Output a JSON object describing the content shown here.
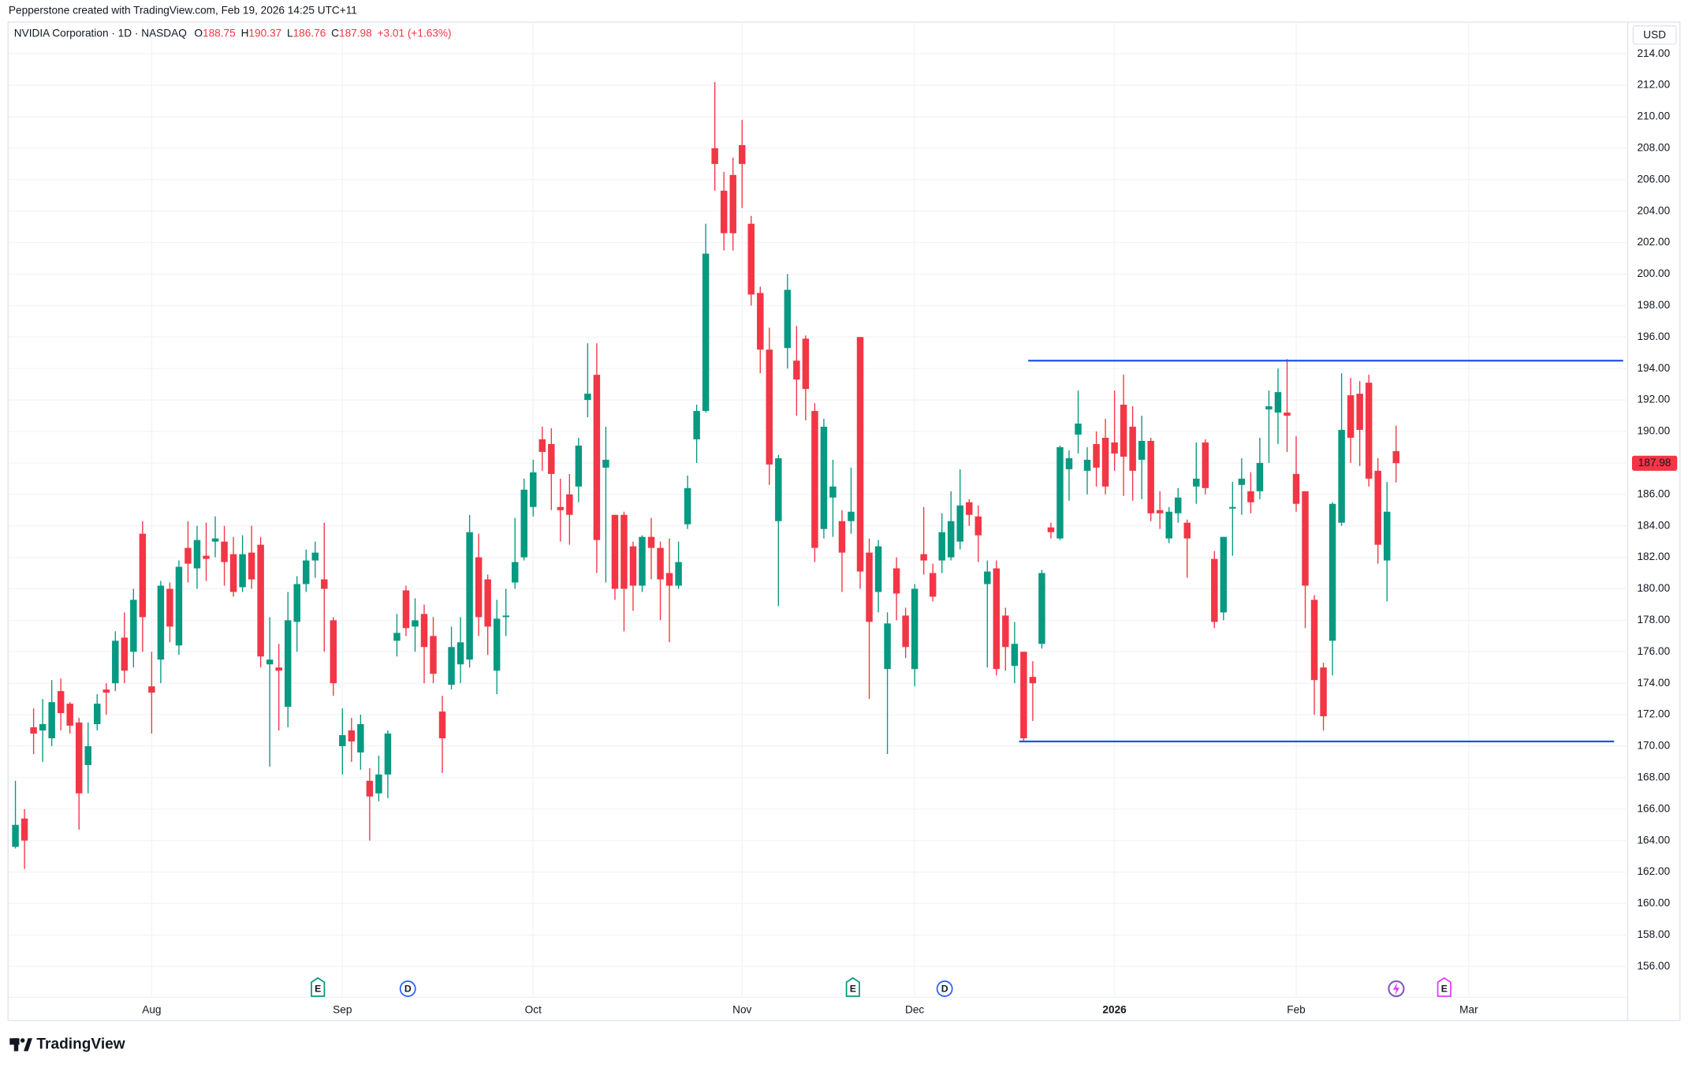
{
  "credit": "Pepperstone created with TradingView.com, Feb 19, 2026 14:25 UTC+11",
  "header": {
    "title": "NVIDIA Corporation · 1D · NASDAQ",
    "fields": [
      {
        "label": "O",
        "value": 188.75
      },
      {
        "label": "H",
        "value": 190.37
      },
      {
        "label": "L",
        "value": 186.76
      },
      {
        "label": "C",
        "value": 187.98
      }
    ],
    "change": "+3.01 (+1.63%)"
  },
  "currency": "USD",
  "footer": "TradingView",
  "chart_data": {
    "type": "candlestick",
    "up_color": "#089981",
    "down_color": "#f23645",
    "grid": true,
    "open": [
      163.6,
      165.4,
      171.2,
      171,
      170.5,
      173.5,
      172.7,
      171.5,
      168.8,
      171.4,
      173.6,
      174,
      176.9,
      176,
      183.5,
      173.8,
      175.5,
      180,
      176.4,
      182.6,
      181.3,
      182.1,
      183,
      183,
      182.2,
      180.1,
      182.3,
      182.8,
      175.2,
      175,
      172.5,
      177.9,
      180.3,
      181.8,
      180.6,
      178,
      170,
      171,
      169.6,
      167.8,
      167,
      168.2,
      176.7,
      179.9,
      177.6,
      178.4,
      177,
      172.2,
      173.9,
      175.2,
      175.5,
      182,
      180.6,
      174.8,
      178.2,
      180.4,
      182,
      185.2,
      189.5,
      189.2,
      185.2,
      186,
      186.5,
      192,
      193.6,
      187.7,
      184.7,
      184.7,
      182.7,
      180.2,
      183.3,
      182.6,
      181,
      180.2,
      184.1,
      189.5,
      191.3,
      208,
      205.3,
      206.3,
      208.2,
      203.2,
      198.8,
      195.2,
      184.3,
      195.3,
      194.5,
      195.9,
      191.3,
      183.8,
      185.8,
      184.3,
      184.3,
      196,
      182.3,
      179.8,
      174.9,
      181.3,
      178.3,
      174.9,
      182.2,
      181,
      181.8,
      182,
      183,
      185.5,
      184.6,
      180.3,
      181.3,
      178.3,
      175.1,
      176,
      174.4,
      176.5,
      183.9,
      183.2,
      187.6,
      189.8,
      187.5,
      189.2,
      189.6,
      189.3,
      191.7,
      190.3,
      188.2,
      189.4,
      185,
      183.2,
      184.8,
      184.2,
      186.5,
      189.3,
      181.9,
      178.5,
      185.1,
      186.6,
      186.2,
      186.2,
      191.4,
      191.2,
      191.2,
      187.3,
      186.2,
      179.3,
      175,
      176.7,
      184.2,
      192.3,
      192.4,
      193.1,
      187.5,
      181.8,
      188.75
    ],
    "high": [
      167.8,
      166,
      172.4,
      173,
      174.2,
      174.3,
      172.8,
      171.8,
      171.5,
      173.3,
      174,
      177.3,
      178.5,
      180,
      184.3,
      176,
      180.5,
      180.4,
      181.8,
      184.3,
      184,
      184.2,
      184.6,
      184,
      183.3,
      183.4,
      184,
      183.3,
      178.2,
      176.5,
      179.8,
      180.8,
      182.5,
      183,
      184.2,
      178.2,
      172.4,
      171.8,
      172,
      168.6,
      169.4,
      171,
      178.4,
      180.2,
      179.4,
      179,
      178.2,
      173.2,
      177.6,
      178.2,
      184.7,
      183.5,
      180.9,
      179.3,
      180,
      184.5,
      187,
      188.2,
      190.3,
      190.2,
      187,
      187.3,
      189.6,
      195.6,
      195.6,
      190.3,
      184.7,
      184.9,
      183,
      183.4,
      184.5,
      183,
      183.2,
      183,
      187.2,
      191.7,
      203.2,
      212.2,
      206.5,
      207.4,
      209.8,
      203.7,
      199.2,
      196.6,
      188.5,
      200,
      196.7,
      196.1,
      191.8,
      190.8,
      188.2,
      185,
      187.7,
      196,
      183.2,
      183.1,
      178.5,
      182,
      178.8,
      180.3,
      185.2,
      181.6,
      184.8,
      186.2,
      187.6,
      185.7,
      185.3,
      181.8,
      181.8,
      178.8,
      177.9,
      176,
      175.4,
      181.2,
      184.2,
      189.1,
      188.8,
      192.6,
      189,
      190,
      190.8,
      192.6,
      193.6,
      191.6,
      191,
      189.6,
      186.2,
      185.2,
      186.4,
      184.4,
      189.3,
      189.5,
      182.4,
      183.3,
      186.8,
      188.3,
      187.4,
      189.6,
      192.6,
      194,
      194.6,
      189.7,
      186.2,
      179.6,
      175.3,
      185.5,
      193.7,
      193.4,
      193.2,
      193.6,
      188.3,
      186.8,
      190.37
    ],
    "low": [
      163.5,
      162.2,
      169.5,
      169,
      170,
      171,
      170.8,
      164.7,
      167,
      171,
      172,
      173.5,
      174,
      175,
      176,
      170.8,
      174,
      176.6,
      175.8,
      180.4,
      180,
      180.5,
      182,
      180.2,
      179.5,
      179.8,
      180,
      175,
      168.7,
      171,
      171.2,
      176,
      179.8,
      180.7,
      176,
      173.2,
      168.2,
      169,
      168.5,
      164,
      166.5,
      166.7,
      175.7,
      177,
      176,
      174,
      174,
      168.3,
      173.6,
      174,
      175,
      177,
      175.8,
      173.3,
      177,
      180,
      181.8,
      184.6,
      187.5,
      185,
      183,
      182.8,
      185.5,
      190.9,
      181,
      180.4,
      179.3,
      177.3,
      178.6,
      179.8,
      180.6,
      178,
      176.6,
      180,
      183.8,
      188,
      191.2,
      205.3,
      201.5,
      201.5,
      204.2,
      198,
      193.7,
      186.6,
      178.9,
      194,
      191,
      190.7,
      181.7,
      183.2,
      183.3,
      179.8,
      183.5,
      180,
      173,
      178.5,
      169.5,
      178,
      175.6,
      173.8,
      180.9,
      179.2,
      181,
      181.8,
      182.5,
      184,
      181.7,
      175,
      174.5,
      174.8,
      174,
      170.3,
      171.6,
      176.2,
      183.2,
      183.1,
      185.6,
      188.6,
      186,
      186.5,
      186,
      187.5,
      185.9,
      185.6,
      185.7,
      184.3,
      183.8,
      182.9,
      184.2,
      180.7,
      185.4,
      186,
      177.5,
      178,
      182.1,
      184.7,
      184.8,
      185.7,
      188,
      189.2,
      188.7,
      184.9,
      177.5,
      172,
      171,
      174.5,
      184,
      188,
      187.8,
      186.5,
      181.6,
      179.2,
      186.76
    ],
    "close": [
      165,
      164,
      170.8,
      171.4,
      172.8,
      172.1,
      171.3,
      167,
      170,
      172.7,
      173.4,
      176.7,
      174.8,
      179.3,
      178.2,
      173.4,
      180.2,
      177.6,
      181.4,
      181.6,
      183.1,
      181.9,
      183.2,
      181.7,
      179.8,
      182.2,
      180.6,
      175.7,
      175.5,
      174.8,
      178,
      180.3,
      181.8,
      182.3,
      180,
      174,
      170.7,
      170.3,
      171.4,
      166.8,
      168.2,
      170.8,
      177.2,
      177.5,
      178,
      176.3,
      174.6,
      170.5,
      176.3,
      176.6,
      183.6,
      178.2,
      177.6,
      178.1,
      178.3,
      181.7,
      186.3,
      187.4,
      188.7,
      187.3,
      185,
      184.7,
      189.1,
      192.4,
      183.1,
      188.2,
      180,
      180,
      180.2,
      183.3,
      182.6,
      180.6,
      180.2,
      181.7,
      186.4,
      191.3,
      201.3,
      207,
      202.6,
      202.6,
      207,
      198.7,
      195.2,
      187.9,
      188.3,
      199,
      193.3,
      192.7,
      182.6,
      190.3,
      186.5,
      182.3,
      184.9,
      181.1,
      177.9,
      182.7,
      177.8,
      179.7,
      176.3,
      180,
      181.8,
      179.5,
      183.6,
      184.3,
      185.3,
      184.7,
      183.4,
      181.1,
      174.9,
      176.3,
      176.5,
      170.5,
      174,
      181,
      183.6,
      189,
      188.3,
      190.5,
      188.2,
      187.7,
      186.5,
      188.6,
      188.4,
      187.5,
      189.4,
      184.8,
      184.8,
      184.9,
      185.8,
      183.2,
      187,
      186.4,
      177.9,
      183.3,
      185.2,
      187,
      185.5,
      188,
      191.6,
      192.5,
      191,
      185.4,
      180.2,
      174.2,
      171.9,
      185.4,
      190.1,
      189.6,
      190.1,
      187,
      182.8,
      184.9,
      187.98
    ],
    "xlim": [
      -0.75,
      177.5
    ],
    "xticks": [
      {
        "value": 15,
        "label": "Aug"
      },
      {
        "value": 36,
        "label": "Sep"
      },
      {
        "value": 57,
        "label": "Oct"
      },
      {
        "value": 80,
        "label": "Nov"
      },
      {
        "value": 99,
        "label": "Dec"
      },
      {
        "value": 121,
        "label": "2026"
      },
      {
        "value": 141,
        "label": "Feb"
      },
      {
        "value": 160,
        "label": "Mar"
      }
    ],
    "ylim": [
      152.6,
      216.05
    ],
    "yticks": [
      {
        "value": 156,
        "label": "156.00"
      },
      {
        "value": 158,
        "label": "158.00"
      },
      {
        "value": 160,
        "label": "160.00"
      },
      {
        "value": 162,
        "label": "162.00"
      },
      {
        "value": 164,
        "label": "164.00"
      },
      {
        "value": 166,
        "label": "166.00"
      },
      {
        "value": 168,
        "label": "168.00"
      },
      {
        "value": 170,
        "label": "170.00"
      },
      {
        "value": 172,
        "label": "172.00"
      },
      {
        "value": 174,
        "label": "174.00"
      },
      {
        "value": 176,
        "label": "176.00"
      },
      {
        "value": 178,
        "label": "178.00"
      },
      {
        "value": 180,
        "label": "180.00"
      },
      {
        "value": 182,
        "label": "182.00"
      },
      {
        "value": 184,
        "label": "184.00"
      },
      {
        "value": 186,
        "label": "186.00"
      },
      {
        "value": 188,
        "label": "188.00"
      },
      {
        "value": 190,
        "label": "190.00"
      },
      {
        "value": 192,
        "label": "192.00"
      },
      {
        "value": 194,
        "label": "194.00"
      },
      {
        "value": 196,
        "label": "196.00"
      },
      {
        "value": 198,
        "label": "198.00"
      },
      {
        "value": 200,
        "label": "200.00"
      },
      {
        "value": 202,
        "label": "202.00"
      },
      {
        "value": 204,
        "label": "204.00"
      },
      {
        "value": 206,
        "label": "206.00"
      },
      {
        "value": 208,
        "label": "208.00"
      },
      {
        "value": 210,
        "label": "210.00"
      },
      {
        "value": 212,
        "label": "212.00"
      },
      {
        "value": 214,
        "label": "214.00"
      }
    ],
    "hlines": [
      {
        "y": 194.5,
        "x": [
          111.5,
          177
        ]
      },
      {
        "y": 170.3,
        "x": [
          110.5,
          176
        ]
      }
    ],
    "hline_color": "#1e53e5",
    "events": [
      {
        "label": "E",
        "x": 33.3,
        "color": "#089981"
      },
      {
        "label": "D",
        "x": 43.2,
        "color": "#2962ff"
      },
      {
        "label": "E",
        "x": 92.2,
        "color": "#089981"
      },
      {
        "label": "D",
        "x": 102.3,
        "color": "#2962ff"
      },
      {
        "label": "E",
        "x": 157.3,
        "color": "#e040fb"
      }
    ]
  }
}
